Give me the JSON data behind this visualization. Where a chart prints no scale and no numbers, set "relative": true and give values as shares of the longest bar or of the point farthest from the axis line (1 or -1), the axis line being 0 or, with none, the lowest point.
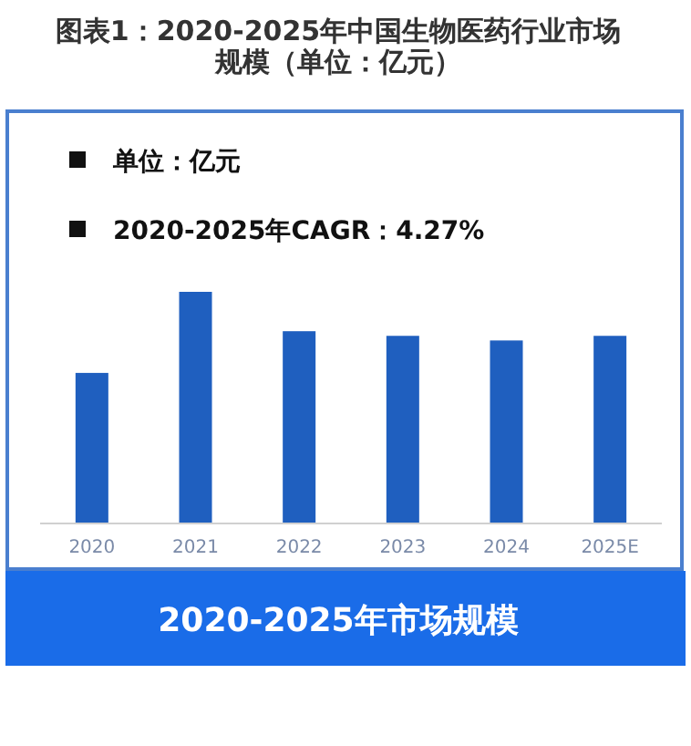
{
  "chart_data": {
    "type": "bar",
    "title": "图表1：2020-2025年中国生物医药行业市场规模（单位：亿元）",
    "categories": [
      "2020",
      "2021",
      "2022",
      "2023",
      "2024",
      "2025E"
    ],
    "values": [
      0.65,
      1,
      0.83,
      0.81,
      0.79,
      0.81
    ],
    "color": "#1f5fbf",
    "relative": true,
    "xlabel": "2020-2025年市场规模",
    "annotations": [
      "单位：亿元",
      "2020-2025年CAGR：4.27%"
    ]
  }
}
